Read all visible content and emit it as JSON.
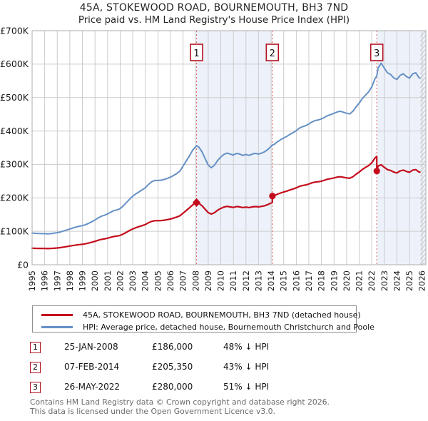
{
  "title": {
    "line1": "45A, STOKEWOOD ROAD, BOURNEMOUTH, BH3 7ND",
    "line2": "Price paid vs. HM Land Registry's House Price Index (HPI)"
  },
  "chart_data": {
    "type": "line",
    "title": "45A, STOKEWOOD ROAD, BOURNEMOUTH, BH3 7ND — Price paid vs. HM Land Registry's House Price Index (HPI)",
    "xlabel": "",
    "ylabel": "",
    "y_unit": "GBP thousands",
    "xlim": [
      1995,
      2026.3
    ],
    "ylim": [
      0,
      700
    ],
    "grid": true,
    "legend_position": "below",
    "x_ticks": [
      1995,
      1996,
      1997,
      1998,
      1999,
      2000,
      2001,
      2002,
      2003,
      2004,
      2005,
      2006,
      2007,
      2008,
      2009,
      2010,
      2011,
      2012,
      2013,
      2014,
      2015,
      2016,
      2017,
      2018,
      2019,
      2020,
      2021,
      2022,
      2023,
      2024,
      2025,
      2026
    ],
    "y_ticks": [
      {
        "v": 0,
        "label": "£0"
      },
      {
        "v": 100,
        "label": "£100K"
      },
      {
        "v": 200,
        "label": "£200K"
      },
      {
        "v": 300,
        "label": "£300K"
      },
      {
        "v": 400,
        "label": "£400K"
      },
      {
        "v": 500,
        "label": "£500K"
      },
      {
        "v": 600,
        "label": "£600K"
      },
      {
        "v": 700,
        "label": "£700K"
      }
    ],
    "shaded_bands": [
      [
        2008.07,
        2014.1
      ],
      [
        2022.4,
        2026.3
      ]
    ],
    "hatch_band": [
      2025.83,
      2026.3
    ],
    "colors": {
      "band": "#edf2fa",
      "grid": "#cccccc",
      "border": "#adadad",
      "vline": "#e06666",
      "red": "#c40c1c",
      "blue": "#6590c6",
      "box_border": "#b21220",
      "hatch": "#bfbfbf",
      "tick_text": "#1a1a1a"
    },
    "series": [
      {
        "name": "45A, STOKEWOOD ROAD, BOURNEMOUTH, BH3 7ND (detached house)",
        "color": "#c40c1c",
        "width": 2.2,
        "data_name": "price-paid-line",
        "points": [
          [
            1995,
            49.6
          ],
          [
            1995.25,
            49.1
          ],
          [
            1995.5,
            48.9
          ],
          [
            1995.75,
            48.6
          ],
          [
            1996,
            48.6
          ],
          [
            1996.25,
            48.3
          ],
          [
            1996.5,
            48.6
          ],
          [
            1996.75,
            49.4
          ],
          [
            1997,
            50.2
          ],
          [
            1997.25,
            51.2
          ],
          [
            1997.5,
            52.8
          ],
          [
            1997.75,
            54.3
          ],
          [
            1998,
            55.9
          ],
          [
            1998.25,
            57.5
          ],
          [
            1998.5,
            59
          ],
          [
            1998.75,
            60.1
          ],
          [
            1999,
            61.1
          ],
          [
            1999.25,
            62.7
          ],
          [
            1999.5,
            64.8
          ],
          [
            1999.75,
            67.4
          ],
          [
            2000,
            70
          ],
          [
            2000.25,
            73.2
          ],
          [
            2000.5,
            75.8
          ],
          [
            2000.75,
            77.3
          ],
          [
            2001,
            79.4
          ],
          [
            2001.25,
            82
          ],
          [
            2001.5,
            84.6
          ],
          [
            2001.75,
            85.7
          ],
          [
            2002,
            87.8
          ],
          [
            2002.25,
            92
          ],
          [
            2002.5,
            97.2
          ],
          [
            2002.75,
            102.4
          ],
          [
            2003,
            107.1
          ],
          [
            2003.25,
            110.8
          ],
          [
            2003.5,
            113.9
          ],
          [
            2003.75,
            117
          ],
          [
            2004,
            120.2
          ],
          [
            2004.25,
            125.4
          ],
          [
            2004.5,
            129.6
          ],
          [
            2004.75,
            131.7
          ],
          [
            2005,
            131.7
          ],
          [
            2005.25,
            132.2
          ],
          [
            2005.5,
            133.2
          ],
          [
            2005.75,
            134.8
          ],
          [
            2006,
            136.9
          ],
          [
            2006.25,
            139.5
          ],
          [
            2006.5,
            142.6
          ],
          [
            2006.75,
            146.3
          ],
          [
            2007,
            154.1
          ],
          [
            2007.25,
            162
          ],
          [
            2007.5,
            169.8
          ],
          [
            2007.75,
            178.7
          ],
          [
            2008.07,
            186
          ],
          [
            2008.25,
            183.9
          ],
          [
            2008.5,
            176.6
          ],
          [
            2008.75,
            166.2
          ],
          [
            2009,
            155.7
          ],
          [
            2009.25,
            151.5
          ],
          [
            2009.5,
            155.7
          ],
          [
            2009.75,
            163
          ],
          [
            2010,
            168.3
          ],
          [
            2010.25,
            172.4
          ],
          [
            2010.5,
            174.5
          ],
          [
            2010.75,
            172.9
          ],
          [
            2011,
            171.4
          ],
          [
            2011.25,
            174
          ],
          [
            2011.5,
            173
          ],
          [
            2011.75,
            170.9
          ],
          [
            2012,
            172.4
          ],
          [
            2012.25,
            170.9
          ],
          [
            2012.5,
            173
          ],
          [
            2012.75,
            174
          ],
          [
            2013,
            173
          ],
          [
            2013.25,
            174.5
          ],
          [
            2013.5,
            176.6
          ],
          [
            2013.75,
            180.3
          ],
          [
            2014.1,
            186
          ],
          [
            2014.1,
            205.35
          ],
          [
            2014.25,
            206.5
          ],
          [
            2014.5,
            211
          ],
          [
            2014.75,
            214.5
          ],
          [
            2015,
            217.4
          ],
          [
            2015.25,
            220.2
          ],
          [
            2015.5,
            223.7
          ],
          [
            2015.75,
            226.5
          ],
          [
            2016,
            230
          ],
          [
            2016.25,
            234.6
          ],
          [
            2016.5,
            236.9
          ],
          [
            2016.75,
            238.6
          ],
          [
            2017,
            241.4
          ],
          [
            2017.25,
            244.9
          ],
          [
            2017.5,
            247.2
          ],
          [
            2017.75,
            248.3
          ],
          [
            2018,
            250
          ],
          [
            2018.25,
            252.9
          ],
          [
            2018.5,
            255.8
          ],
          [
            2018.75,
            257.5
          ],
          [
            2019,
            259.8
          ],
          [
            2019.25,
            262.1
          ],
          [
            2019.5,
            263.2
          ],
          [
            2019.75,
            261.5
          ],
          [
            2020,
            259.8
          ],
          [
            2020.25,
            258.6
          ],
          [
            2020.5,
            263.2
          ],
          [
            2020.75,
            270.7
          ],
          [
            2021,
            277
          ],
          [
            2021.25,
            285
          ],
          [
            2021.5,
            290.8
          ],
          [
            2021.75,
            296.5
          ],
          [
            2022,
            305.1
          ],
          [
            2022.25,
            318.9
          ],
          [
            2022.4,
            324
          ],
          [
            2022.4,
            280
          ],
          [
            2022.5,
            295.2
          ],
          [
            2022.75,
            298.8
          ],
          [
            2023,
            291.4
          ],
          [
            2023.25,
            284.4
          ],
          [
            2023.5,
            282
          ],
          [
            2023.75,
            277
          ],
          [
            2024,
            274.5
          ],
          [
            2024.25,
            280.5
          ],
          [
            2024.5,
            283
          ],
          [
            2024.75,
            279
          ],
          [
            2025,
            276.5
          ],
          [
            2025.25,
            283
          ],
          [
            2025.5,
            284.5
          ],
          [
            2025.75,
            277.5
          ],
          [
            2025.83,
            277
          ]
        ]
      },
      {
        "name": "HPI: Average price, detached house, Bournemouth Christchurch and Poole",
        "color": "#6590c6",
        "width": 2,
        "data_name": "hpi-line",
        "points": [
          [
            1995,
            95
          ],
          [
            1995.25,
            94
          ],
          [
            1995.5,
            93.5
          ],
          [
            1995.75,
            93
          ],
          [
            1996,
            93
          ],
          [
            1996.25,
            92.5
          ],
          [
            1996.5,
            93
          ],
          [
            1996.75,
            94.5
          ],
          [
            1997,
            96
          ],
          [
            1997.25,
            98
          ],
          [
            1997.5,
            101
          ],
          [
            1997.75,
            104
          ],
          [
            1998,
            107
          ],
          [
            1998.25,
            110
          ],
          [
            1998.5,
            113
          ],
          [
            1998.75,
            115
          ],
          [
            1999,
            117
          ],
          [
            1999.25,
            120
          ],
          [
            1999.5,
            124
          ],
          [
            1999.75,
            129
          ],
          [
            2000,
            134
          ],
          [
            2000.25,
            140
          ],
          [
            2000.5,
            145
          ],
          [
            2000.75,
            148
          ],
          [
            2001,
            152
          ],
          [
            2001.25,
            157
          ],
          [
            2001.5,
            162
          ],
          [
            2001.75,
            164
          ],
          [
            2002,
            168
          ],
          [
            2002.25,
            176
          ],
          [
            2002.5,
            186
          ],
          [
            2002.75,
            196
          ],
          [
            2003,
            205
          ],
          [
            2003.25,
            212
          ],
          [
            2003.5,
            218
          ],
          [
            2003.75,
            224
          ],
          [
            2004,
            230
          ],
          [
            2004.25,
            240
          ],
          [
            2004.5,
            248
          ],
          [
            2004.75,
            252
          ],
          [
            2005,
            252
          ],
          [
            2005.25,
            253
          ],
          [
            2005.5,
            255
          ],
          [
            2005.75,
            258
          ],
          [
            2006,
            262
          ],
          [
            2006.25,
            267
          ],
          [
            2006.5,
            273
          ],
          [
            2006.75,
            280
          ],
          [
            2007,
            295
          ],
          [
            2007.25,
            310
          ],
          [
            2007.5,
            325
          ],
          [
            2007.75,
            342
          ],
          [
            2008.07,
            356
          ],
          [
            2008.25,
            352
          ],
          [
            2008.5,
            338
          ],
          [
            2008.75,
            318
          ],
          [
            2009,
            298
          ],
          [
            2009.25,
            290
          ],
          [
            2009.5,
            298
          ],
          [
            2009.75,
            312
          ],
          [
            2010,
            322
          ],
          [
            2010.25,
            330
          ],
          [
            2010.5,
            334
          ],
          [
            2010.75,
            331
          ],
          [
            2011,
            328
          ],
          [
            2011.25,
            333
          ],
          [
            2011.5,
            331
          ],
          [
            2011.75,
            327
          ],
          [
            2012,
            330
          ],
          [
            2012.25,
            327
          ],
          [
            2012.5,
            331
          ],
          [
            2012.75,
            333
          ],
          [
            2013,
            331
          ],
          [
            2013.25,
            334
          ],
          [
            2013.5,
            338
          ],
          [
            2013.75,
            345
          ],
          [
            2014.1,
            358
          ],
          [
            2014.25,
            360
          ],
          [
            2014.5,
            368
          ],
          [
            2014.75,
            374
          ],
          [
            2015,
            379
          ],
          [
            2015.25,
            384
          ],
          [
            2015.5,
            390
          ],
          [
            2015.75,
            395
          ],
          [
            2016,
            401
          ],
          [
            2016.25,
            409
          ],
          [
            2016.5,
            413
          ],
          [
            2016.75,
            416
          ],
          [
            2017,
            421
          ],
          [
            2017.25,
            427
          ],
          [
            2017.5,
            431
          ],
          [
            2017.75,
            433
          ],
          [
            2018,
            436
          ],
          [
            2018.25,
            441
          ],
          [
            2018.5,
            446
          ],
          [
            2018.75,
            449
          ],
          [
            2019,
            453
          ],
          [
            2019.25,
            457
          ],
          [
            2019.5,
            459
          ],
          [
            2019.75,
            456
          ],
          [
            2020,
            453
          ],
          [
            2020.25,
            451
          ],
          [
            2020.5,
            459
          ],
          [
            2020.75,
            472
          ],
          [
            2021,
            483
          ],
          [
            2021.25,
            497
          ],
          [
            2021.5,
            507
          ],
          [
            2021.75,
            517
          ],
          [
            2022,
            532
          ],
          [
            2022.25,
            556
          ],
          [
            2022.4,
            565
          ],
          [
            2022.5,
            588
          ],
          [
            2022.75,
            603
          ],
          [
            2023,
            588
          ],
          [
            2023.25,
            574
          ],
          [
            2023.5,
            569
          ],
          [
            2023.75,
            559
          ],
          [
            2024,
            554
          ],
          [
            2024.25,
            566
          ],
          [
            2024.5,
            571
          ],
          [
            2024.75,
            563
          ],
          [
            2025,
            558
          ],
          [
            2025.25,
            571
          ],
          [
            2025.5,
            574
          ],
          [
            2025.75,
            560
          ],
          [
            2025.83,
            558
          ]
        ]
      }
    ],
    "sale_markers": [
      {
        "n": "1",
        "x": 2008.07,
        "y": 186,
        "shape": "diamond"
      },
      {
        "n": "2",
        "x": 2014.1,
        "y": 205.35,
        "shape": "circle"
      },
      {
        "n": "3",
        "x": 2022.4,
        "y": 280,
        "shape": "circle"
      }
    ]
  },
  "sales": [
    {
      "num": "1",
      "date": "25-JAN-2008",
      "price": "£186,000",
      "vs_hpi": "48% ↓ HPI"
    },
    {
      "num": "2",
      "date": "07-FEB-2014",
      "price": "£205,350",
      "vs_hpi": "43% ↓ HPI"
    },
    {
      "num": "3",
      "date": "26-MAY-2022",
      "price": "£280,000",
      "vs_hpi": "51% ↓ HPI"
    }
  ],
  "footer": {
    "line1": "Contains HM Land Registry data © Crown copyright and database right 2026.",
    "line2": "This data is licensed under the Open Government Licence v3.0."
  }
}
